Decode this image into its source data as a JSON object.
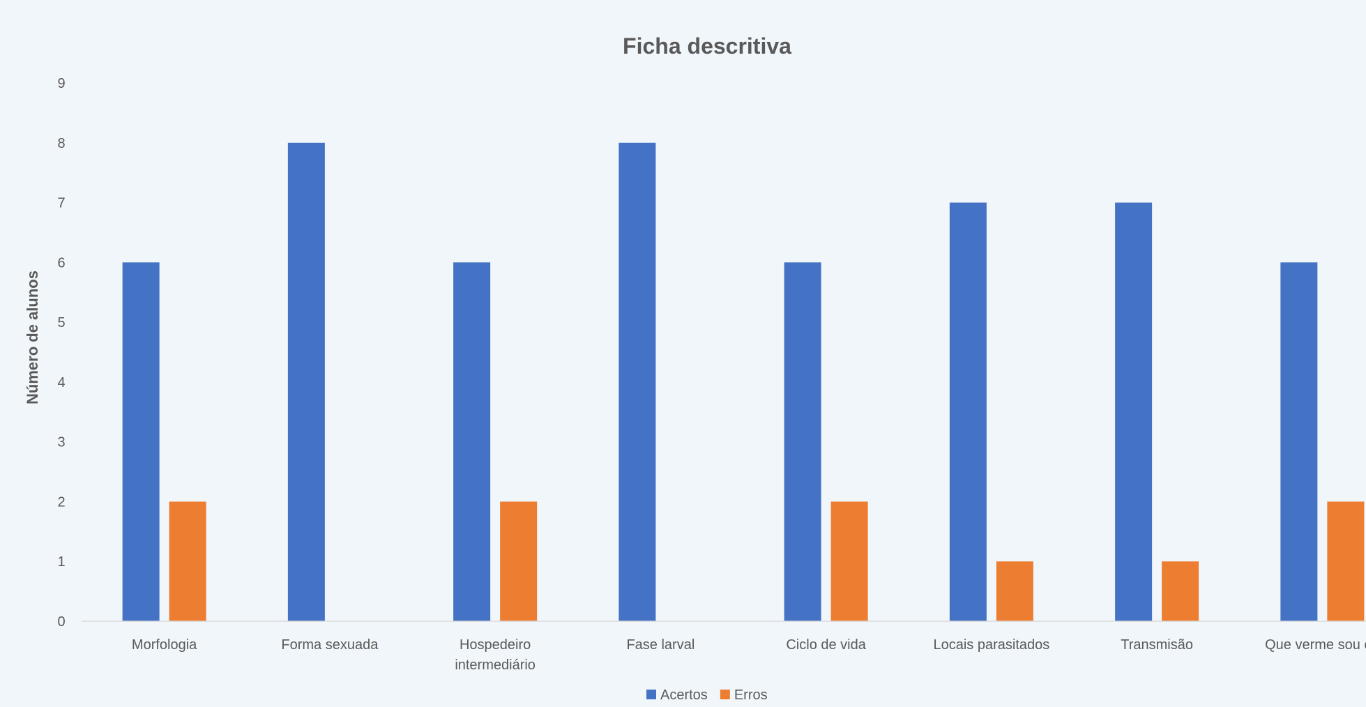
{
  "chart_data": {
    "type": "bar",
    "title": "Ficha descritiva",
    "xlabel": "",
    "ylabel": "Número de alunos",
    "ylim": [
      0,
      9
    ],
    "yticks": [
      0,
      1,
      2,
      3,
      4,
      5,
      6,
      7,
      8,
      9
    ],
    "grid": false,
    "legend_position": "bottom",
    "categories": [
      [
        "Morfologia"
      ],
      [
        "Forma sexuada"
      ],
      [
        "Hospedeiro",
        "intermediário"
      ],
      [
        "Fase larval"
      ],
      [
        "Ciclo de vida"
      ],
      [
        "Locais parasitados"
      ],
      [
        "Transmisão"
      ],
      [
        "Que verme sou eu"
      ]
    ],
    "series": [
      {
        "name": "Acertos",
        "color": "#4472c4",
        "values": [
          6,
          8,
          6,
          8,
          6,
          7,
          7,
          6
        ]
      },
      {
        "name": "Erros",
        "color": "#ed7d31",
        "values": [
          2,
          0,
          2,
          0,
          2,
          1,
          1,
          2
        ]
      }
    ]
  }
}
